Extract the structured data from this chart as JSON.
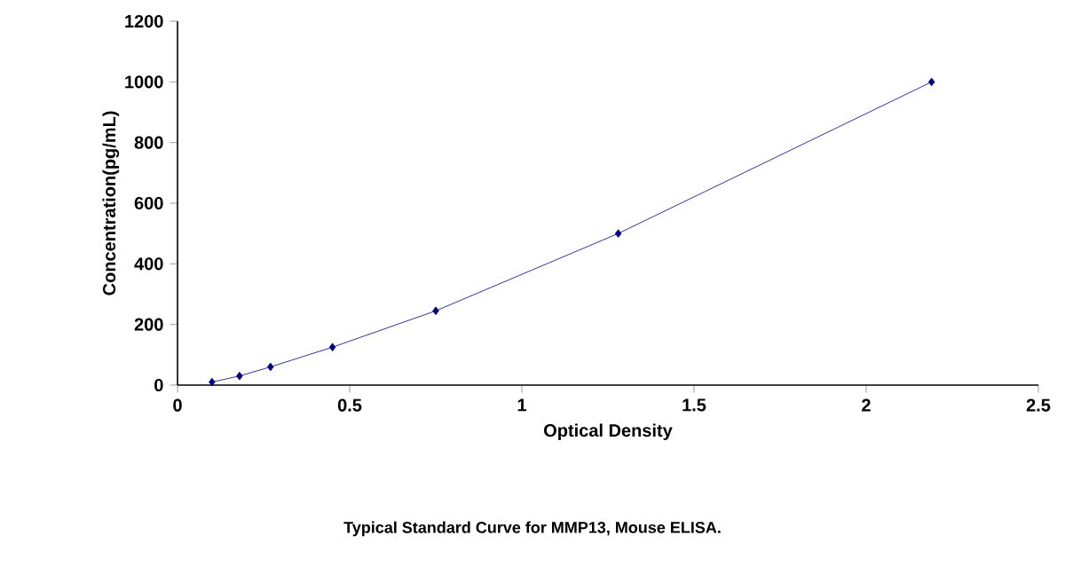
{
  "chart_data": {
    "type": "line",
    "title": "Typical Standard Curve for MMP13, Mouse ELISA.",
    "xlabel": "Optical Density",
    "ylabel": "Concentration(pg/mL)",
    "x": [
      0.1,
      0.18,
      0.27,
      0.45,
      0.75,
      1.28,
      2.19
    ],
    "series": [
      {
        "color": "#00007f",
        "values": [
          10,
          30,
          60,
          125,
          245,
          500,
          1000
        ]
      }
    ],
    "marker": "diamond",
    "line_style": "solid",
    "grid": false,
    "legend": false,
    "xlim": [
      0,
      2.5
    ],
    "ylim": [
      0,
      1200
    ],
    "xticks": [
      0,
      0.5,
      1,
      1.5,
      2,
      2.5
    ],
    "yticks": [
      0,
      200,
      400,
      600,
      800,
      1000,
      1200
    ]
  }
}
